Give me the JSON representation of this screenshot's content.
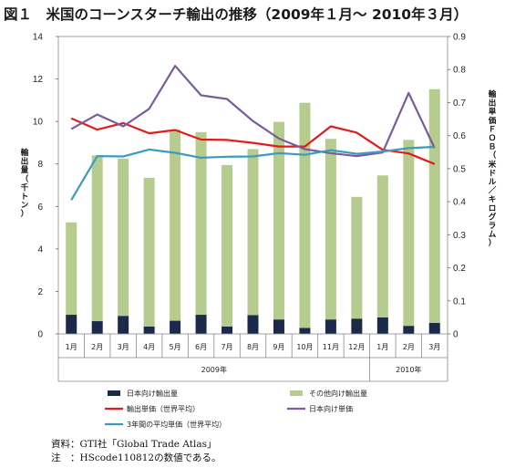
{
  "title": "図１　米国のコーンスターチ輸出の推移（2009年１月～ 2010年３月）",
  "chart_data": {
    "type": "bar",
    "categories": [
      "1月",
      "2月",
      "3月",
      "4月",
      "5月",
      "6月",
      "7月",
      "8月",
      "9月",
      "10月",
      "11月",
      "12月",
      "1月",
      "2月",
      "3月"
    ],
    "year_groups": [
      {
        "label": "2009年",
        "from": 0,
        "to": 11
      },
      {
        "label": "2010年",
        "from": 12,
        "to": 14
      }
    ],
    "series": [
      {
        "name": "日本向け輸出量",
        "kind": "bar",
        "axis": "left",
        "color": "#1b2a4a",
        "values": [
          0.9,
          0.6,
          0.85,
          0.35,
          0.62,
          0.9,
          0.35,
          0.88,
          0.68,
          0.28,
          0.68,
          0.72,
          0.78,
          0.38,
          0.52
        ]
      },
      {
        "name": "その他向け輸出量",
        "kind": "bar",
        "axis": "left",
        "color": "#b5cc8e",
        "values": [
          4.35,
          7.8,
          7.4,
          7.0,
          9.0,
          8.6,
          7.6,
          7.82,
          9.3,
          10.6,
          8.5,
          5.73,
          6.68,
          8.75,
          11.0
        ]
      },
      {
        "name": "輸出単価（世界平均）",
        "kind": "line",
        "axis": "right",
        "color": "#e21c1c",
        "values": [
          0.652,
          0.618,
          0.638,
          0.607,
          0.617,
          0.588,
          0.587,
          0.578,
          0.567,
          0.567,
          0.628,
          0.609,
          0.557,
          0.546,
          0.514
        ]
      },
      {
        "name": "日本向け単価",
        "kind": "line",
        "axis": "right",
        "color": "#7a5c9c",
        "values": [
          0.62,
          0.664,
          0.628,
          0.681,
          0.811,
          0.722,
          0.711,
          0.644,
          0.591,
          0.559,
          0.547,
          0.538,
          0.549,
          0.729,
          0.562
        ]
      },
      {
        "name": "3年間の平均単価（世界平均）",
        "kind": "line",
        "axis": "right",
        "color": "#3d9bbf",
        "values": [
          0.405,
          0.538,
          0.537,
          0.558,
          0.548,
          0.533,
          0.536,
          0.537,
          0.547,
          0.542,
          0.556,
          0.545,
          0.552,
          0.562,
          0.566
        ]
      }
    ],
    "left_axis": {
      "label": "輸出量（千トン）",
      "min": 0,
      "max": 14,
      "ticks": [
        0,
        2,
        4,
        6,
        8,
        10,
        12,
        14
      ]
    },
    "right_axis": {
      "label": "輸出単価ＦＯＢ（米ドル／キログラム）",
      "min": 0,
      "max": 0.9,
      "ticks": [
        0,
        0.1,
        0.2,
        0.3,
        0.4,
        0.5,
        0.6,
        0.7,
        0.8,
        0.9
      ],
      "tick_labels": [
        "0",
        "0.1",
        "0.2",
        "0.3",
        "0.4",
        "0.5",
        "0.6",
        "0.7",
        "0.8",
        "0.9"
      ]
    },
    "grid": false,
    "stacked": true,
    "legend_position": "bottom"
  },
  "notes": [
    "資料：GTI社「Global Trade Atlas」",
    "注　：HScode110812の数値である。"
  ]
}
